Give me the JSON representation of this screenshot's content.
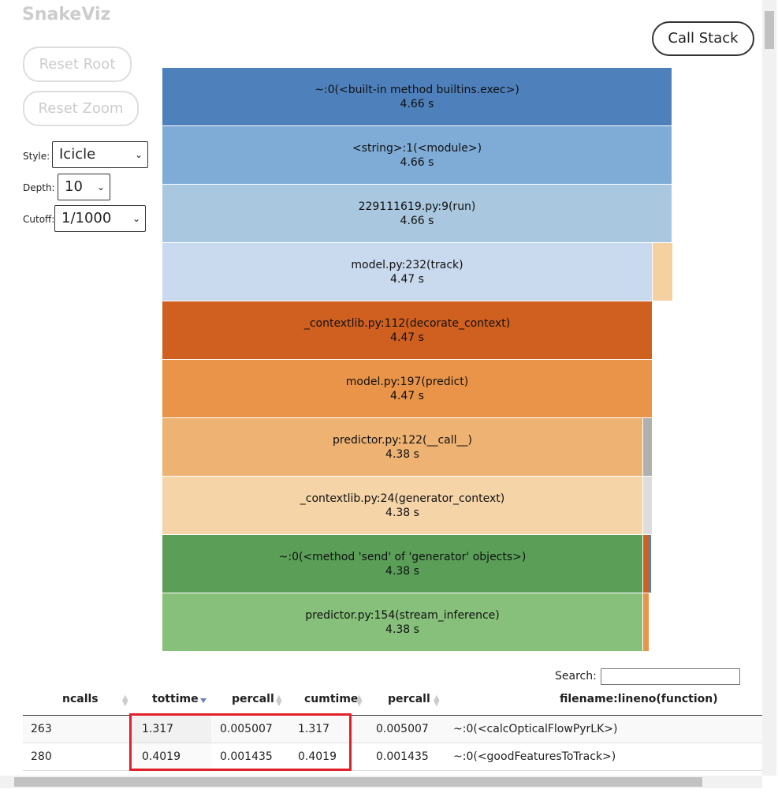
{
  "header": {
    "title": "SnakeViz",
    "call_stack": "Call Stack"
  },
  "controls": {
    "reset_root": "Reset Root",
    "reset_zoom": "Reset Zoom",
    "style_label": "Style:",
    "style_value": "Icicle",
    "depth_label": "Depth:",
    "depth_value": "10",
    "cutoff_label": "Cutoff:",
    "cutoff_value": "1/1000"
  },
  "icicle": {
    "rows": [
      {
        "label": "~:0(<built-in method builtins.exec>)",
        "time": "4.66 s"
      },
      {
        "label": "<string>:1(<module>)",
        "time": "4.66 s"
      },
      {
        "label": "229111619.py:9(run)",
        "time": "4.66 s"
      },
      {
        "label": "model.py:232(track)",
        "time": "4.47 s"
      },
      {
        "label": "_contextlib.py:112(decorate_context)",
        "time": "4.47 s"
      },
      {
        "label": "model.py:197(predict)",
        "time": "4.47 s"
      },
      {
        "label": "predictor.py:122(__call__)",
        "time": "4.38 s"
      },
      {
        "label": "_contextlib.py:24(generator_context)",
        "time": "4.38 s"
      },
      {
        "label": "~:0(<method 'send' of 'generator' objects>)",
        "time": "4.38 s"
      },
      {
        "label": "predictor.py:154(stream_inference)",
        "time": "4.38 s"
      }
    ]
  },
  "table": {
    "search_label": "Search:",
    "columns": [
      "ncalls",
      "tottime",
      "percall",
      "cumtime",
      "percall",
      "filename:lineno(function)"
    ],
    "rows": [
      [
        "263",
        "1.317",
        "0.005007",
        "1.317",
        "0.005007",
        "~:0(<calcOpticalFlowPyrLK>)"
      ],
      [
        "280",
        "0.4019",
        "0.001435",
        "0.4019",
        "0.001435",
        "~:0(<goodFeaturesToTrack>)"
      ]
    ]
  }
}
